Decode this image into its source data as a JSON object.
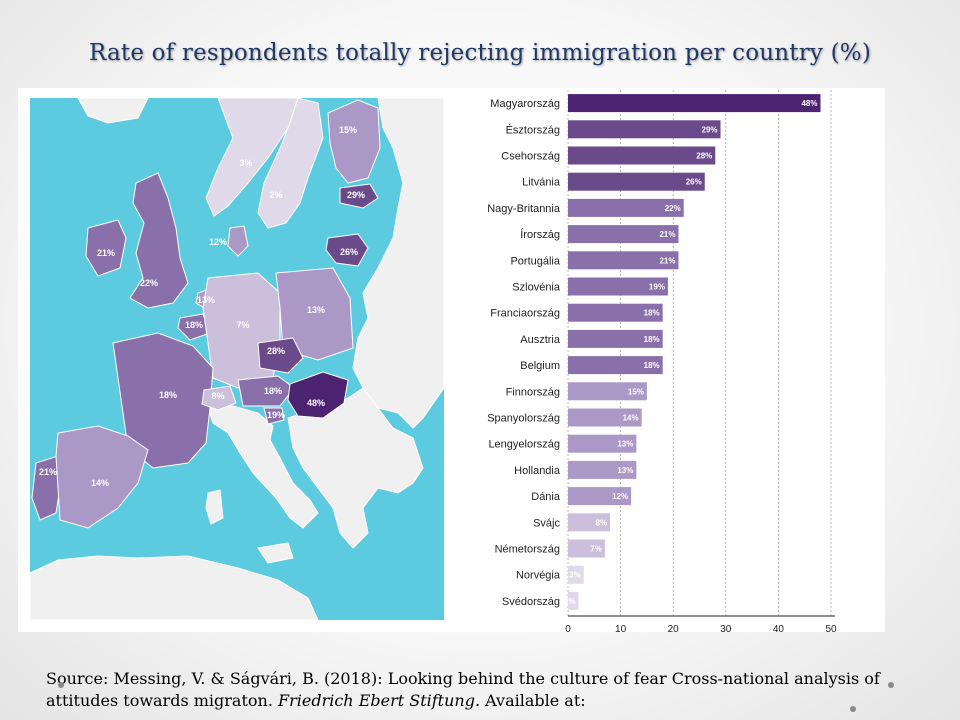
{
  "slide": {
    "title": "Rate of respondents totally rejecting immigration per country (%)",
    "source_part1": "Source: Messing, V. & Ságvári, B. (2018): Looking behind the culture of fear Cross-national analysis of attitudes towards migraton. ",
    "source_italic": "Friedrich Ebert Stiftung.",
    "source_part2": " Available at:"
  },
  "map": {
    "colors": {
      "sea": "#5ccbe0",
      "land_other": "#f0f0f0",
      "border": "#ffffff"
    },
    "labels": [
      {
        "country": "Finland",
        "value": "15%"
      },
      {
        "country": "Norway",
        "value": "3%"
      },
      {
        "country": "Sweden",
        "value": "2%"
      },
      {
        "country": "Estonia",
        "value": "29%"
      },
      {
        "country": "Lithuania",
        "value": "26%"
      },
      {
        "country": "Denmark",
        "value": "12%"
      },
      {
        "country": "Ireland",
        "value": "21%"
      },
      {
        "country": "United Kingdom",
        "value": "22%"
      },
      {
        "country": "Netherlands",
        "value": "13%"
      },
      {
        "country": "Belgium",
        "value": "18%"
      },
      {
        "country": "Germany",
        "value": "7%"
      },
      {
        "country": "Poland",
        "value": "13%"
      },
      {
        "country": "Czech Republic",
        "value": "28%"
      },
      {
        "country": "France",
        "value": "18%"
      },
      {
        "country": "Switzerland",
        "value": "8%"
      },
      {
        "country": "Austria",
        "value": "18%"
      },
      {
        "country": "Slovenia",
        "value": "19%"
      },
      {
        "country": "Hungary",
        "value": "48%"
      },
      {
        "country": "Portugal",
        "value": "21%"
      },
      {
        "country": "Spain",
        "value": "14%"
      }
    ]
  },
  "chart_data": {
    "type": "bar",
    "orientation": "horizontal",
    "categories": [
      "Magyarország",
      "Észtország",
      "Csehország",
      "Litvánia",
      "Nagy-Britannia",
      "Írország",
      "Portugália",
      "Szlovénia",
      "Franciaország",
      "Ausztria",
      "Belgium",
      "Finnország",
      "Spanyolország",
      "Lengyelország",
      "Hollandia",
      "Dánia",
      "Svájc",
      "Németország",
      "Norvégia",
      "Svédország"
    ],
    "values": [
      48,
      29,
      28,
      26,
      22,
      21,
      21,
      19,
      18,
      18,
      18,
      15,
      14,
      13,
      13,
      12,
      8,
      7,
      3,
      2
    ],
    "value_labels": [
      "48%",
      "29%",
      "28%",
      "26%",
      "22%",
      "21%",
      "21%",
      "19%",
      "18%",
      "18%",
      "18%",
      "15%",
      "14%",
      "13%",
      "13%",
      "12%",
      "8%",
      "7%",
      "3%",
      "2%"
    ],
    "xlim": [
      0,
      50
    ],
    "xticks": [
      0,
      10,
      20,
      30,
      40,
      50
    ],
    "grid": "vertical dashed",
    "colors": [
      "#4b2371",
      "#6b4a8c",
      "#8a70aa",
      "#ab98c6",
      "#cbbfdc",
      "#e0d9ea"
    ]
  }
}
